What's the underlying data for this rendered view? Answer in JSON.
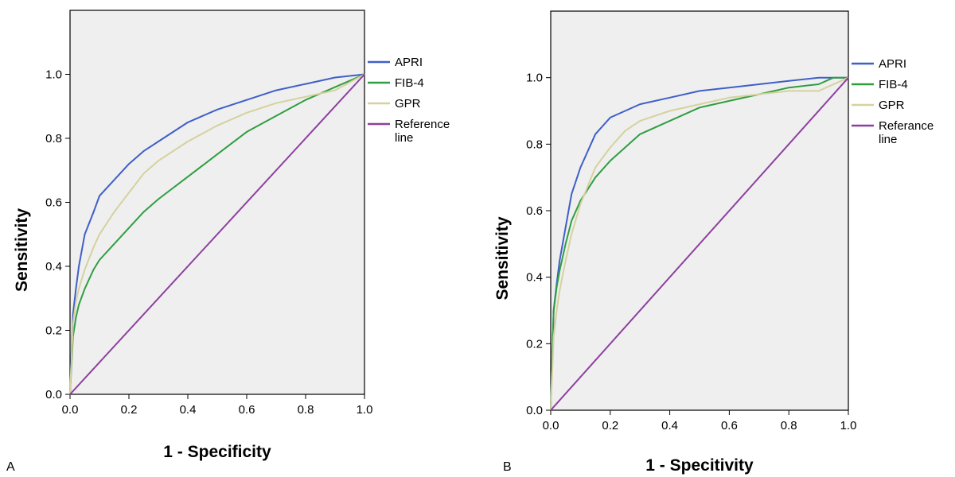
{
  "chart_data": [
    {
      "type": "line",
      "panel_label": "A",
      "xlabel": "1 - Specificity",
      "ylabel": "Sensitivity",
      "xlim": [
        0,
        1
      ],
      "ylim": [
        0,
        1.2
      ],
      "x_ticks": [
        "0.0",
        "0.2",
        "0.4",
        "0.6",
        "0.8",
        "1.0"
      ],
      "y_ticks": [
        "0.0",
        "0.2",
        "0.4",
        "0.6",
        "0.8",
        "1.0"
      ],
      "grid": false,
      "legend_position": "right",
      "series": [
        {
          "name": "APRI",
          "color": "#3f5fc9",
          "x": [
            0,
            0.01,
            0.02,
            0.03,
            0.05,
            0.08,
            0.1,
            0.15,
            0.2,
            0.25,
            0.3,
            0.4,
            0.5,
            0.6,
            0.7,
            0.8,
            0.9,
            1.0
          ],
          "y": [
            0,
            0.25,
            0.33,
            0.4,
            0.5,
            0.57,
            0.62,
            0.67,
            0.72,
            0.76,
            0.79,
            0.85,
            0.89,
            0.92,
            0.95,
            0.97,
            0.99,
            1.0
          ]
        },
        {
          "name": "FIB-4",
          "color": "#2f9e41",
          "x": [
            0,
            0.01,
            0.02,
            0.03,
            0.05,
            0.08,
            0.1,
            0.15,
            0.2,
            0.25,
            0.3,
            0.4,
            0.5,
            0.6,
            0.7,
            0.8,
            0.9,
            0.95,
            1.0
          ],
          "y": [
            0,
            0.18,
            0.24,
            0.28,
            0.33,
            0.39,
            0.42,
            0.47,
            0.52,
            0.57,
            0.61,
            0.68,
            0.75,
            0.82,
            0.87,
            0.92,
            0.96,
            0.98,
            1.0
          ]
        },
        {
          "name": "GPR",
          "color": "#d5d29e",
          "x": [
            0,
            0.01,
            0.02,
            0.03,
            0.05,
            0.08,
            0.1,
            0.15,
            0.2,
            0.25,
            0.3,
            0.4,
            0.5,
            0.6,
            0.7,
            0.8,
            0.9,
            1.0
          ],
          "y": [
            0,
            0.22,
            0.29,
            0.33,
            0.39,
            0.46,
            0.5,
            0.57,
            0.63,
            0.69,
            0.73,
            0.79,
            0.84,
            0.88,
            0.91,
            0.93,
            0.95,
            1.0
          ]
        },
        {
          "name": "Reference line",
          "color": "#8e3f9f",
          "x": [
            0,
            1.0
          ],
          "y": [
            0,
            1.0
          ]
        }
      ]
    },
    {
      "type": "line",
      "panel_label": "B",
      "xlabel": "1 - Specitivity",
      "ylabel": "Sensitivity",
      "xlim": [
        0,
        1
      ],
      "ylim": [
        0,
        1.2
      ],
      "x_ticks": [
        "0.0",
        "0.2",
        "0.4",
        "0.6",
        "0.8",
        "1.0"
      ],
      "y_ticks": [
        "0.0",
        "0.2",
        "0.4",
        "0.6",
        "0.8",
        "1.0"
      ],
      "grid": false,
      "legend_position": "right",
      "series": [
        {
          "name": "APRI",
          "color": "#3f5fc9",
          "x": [
            0,
            0.01,
            0.02,
            0.03,
            0.05,
            0.07,
            0.1,
            0.15,
            0.2,
            0.25,
            0.3,
            0.4,
            0.5,
            0.6,
            0.7,
            0.8,
            0.9,
            1.0
          ],
          "y": [
            0,
            0.3,
            0.38,
            0.45,
            0.55,
            0.65,
            0.73,
            0.83,
            0.88,
            0.9,
            0.92,
            0.94,
            0.96,
            0.97,
            0.98,
            0.99,
            1.0,
            1.0
          ]
        },
        {
          "name": "FIB-4",
          "color": "#2f9e41",
          "x": [
            0,
            0.01,
            0.02,
            0.03,
            0.05,
            0.07,
            0.1,
            0.15,
            0.2,
            0.25,
            0.3,
            0.4,
            0.5,
            0.6,
            0.7,
            0.8,
            0.9,
            0.95,
            1.0
          ],
          "y": [
            0,
            0.3,
            0.37,
            0.42,
            0.5,
            0.57,
            0.63,
            0.7,
            0.75,
            0.79,
            0.83,
            0.87,
            0.91,
            0.93,
            0.95,
            0.97,
            0.98,
            1.0,
            1.0
          ]
        },
        {
          "name": "GPR",
          "color": "#d5d29e",
          "x": [
            0,
            0.01,
            0.02,
            0.03,
            0.05,
            0.07,
            0.1,
            0.15,
            0.2,
            0.25,
            0.3,
            0.4,
            0.5,
            0.6,
            0.7,
            0.8,
            0.9,
            1.0
          ],
          "y": [
            0,
            0.22,
            0.3,
            0.36,
            0.45,
            0.53,
            0.62,
            0.73,
            0.79,
            0.84,
            0.87,
            0.9,
            0.92,
            0.94,
            0.95,
            0.96,
            0.96,
            1.0
          ]
        },
        {
          "name": "Referance line",
          "color": "#8e3f9f",
          "x": [
            0,
            1.0
          ],
          "y": [
            0,
            1.0
          ]
        }
      ]
    }
  ]
}
